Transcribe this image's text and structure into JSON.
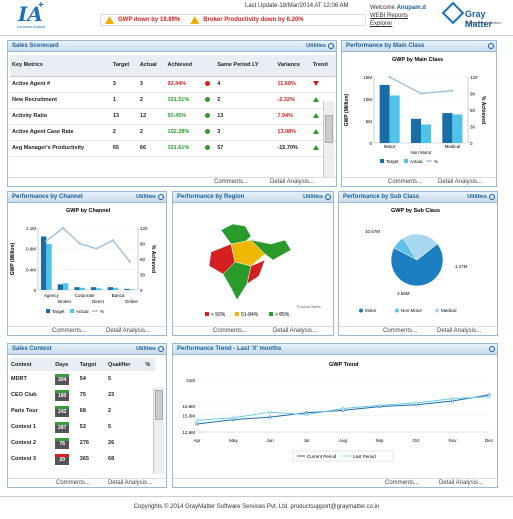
{
  "header": {
    "logo_sub": "Insurance Analytix",
    "last_update": "Last Update-18/Mar/2014 AT 12:06 AM",
    "ticker_1": "GWP down by 19.89%",
    "ticker_2": "Broker Productivity down by 6.20%",
    "welcome": "Welcome",
    "user": "Anupam.d",
    "link1": "WEBI Reports",
    "link2": "Explorer",
    "brand": "Gray Matter",
    "brand_tag": "Engineering Intuition"
  },
  "common": {
    "utilities": "Utilities",
    "comments": "Comments...",
    "detail": "Detail Analysis..."
  },
  "scorecard": {
    "title": "Sales Scorecard",
    "columns": [
      "Key Metrics",
      "Target",
      "Actual",
      "Achieved",
      "",
      "Same Period LY",
      "Variance",
      "Trend"
    ],
    "rows": [
      {
        "metric": "Active Agent #",
        "target": "3",
        "actual": "3",
        "achieved": "92.44%",
        "ach_color": "#d42020",
        "dot": "#d42020",
        "ly": "4",
        "variance": "11.60%",
        "var_color": "#d42020",
        "trend": "down"
      },
      {
        "metric": "New Recruitment",
        "target": "1",
        "actual": "2",
        "achieved": "101.51%",
        "ach_color": "#2a9a2a",
        "dot": "#2a9a2a",
        "ly": "2",
        "variance": "-2.32%",
        "var_color": "#d42020",
        "trend": "up"
      },
      {
        "metric": "Activity Ratio",
        "target": "13",
        "actual": "12",
        "achieved": "92.45%",
        "ach_color": "#2a9a2a",
        "dot": "#2a9a2a",
        "ly": "13",
        "variance": "7.94%",
        "var_color": "#d42020",
        "trend": "up"
      },
      {
        "metric": "Active Agent Case Rate",
        "target": "2",
        "actual": "2",
        "achieved": "102.28%",
        "ach_color": "#2a9a2a",
        "dot": "#2a9a2a",
        "ly": "3",
        "variance": "13.08%",
        "var_color": "#d42020",
        "trend": "up"
      },
      {
        "metric": "Avg Manager's Productivity",
        "target": "65",
        "actual": "66",
        "achieved": "101.61%",
        "ach_color": "#2a9a2a",
        "dot": "#2a9a2a",
        "ly": "57",
        "variance": "-15.70%",
        "var_color": "#222",
        "trend": "up"
      }
    ]
  },
  "main_class": {
    "title": "Performance by Main Class",
    "chart_data": {
      "type": "bar",
      "title": "GWP by Main Class",
      "categories": [
        "Motor",
        "Non Motor",
        "Medical"
      ],
      "series": [
        {
          "name": "Target",
          "values": [
            13.2,
            5.5,
            6.8
          ]
        },
        {
          "name": "Actual",
          "values": [
            10.8,
            4.2,
            6.5
          ]
        }
      ],
      "line": {
        "name": "%",
        "values": [
          120,
          90,
          95
        ]
      },
      "ylabel": "GWP (Million)",
      "y2label": "% Achieved",
      "y_ticks": [
        "0",
        "5M",
        "10M",
        "15M"
      ],
      "y2_ticks": [
        "0",
        "30",
        "60",
        "90",
        "120"
      ]
    }
  },
  "channel": {
    "title": "Performance by Channel",
    "chart_data": {
      "type": "bar",
      "title": "GWP by Channel",
      "categories": [
        "Agency",
        "Broker",
        "Corporate",
        "Direct",
        "Banca",
        "Online"
      ],
      "tick_labels": [
        "Agency",
        "Corporate",
        "Banca"
      ],
      "tick_labels_2": [
        "Broker",
        "Direct",
        "Online"
      ],
      "series": [
        {
          "name": "Target",
          "values": [
            0.95,
            0.1,
            0.05,
            0.05,
            0.05,
            0.02
          ]
        },
        {
          "name": "Actual",
          "values": [
            0.82,
            0.12,
            0.04,
            0.03,
            0.04,
            0.01
          ]
        }
      ],
      "line": {
        "name": "%",
        "values": [
          95,
          120,
          90,
          80,
          96,
          55
        ]
      },
      "ylabel": "GWP (Million)",
      "y2label": "% Achieved",
      "y_ticks": [
        "0",
        "0.4M",
        "0.8M",
        "1.1M"
      ],
      "y2_ticks": [
        "0",
        "30",
        "60",
        "90",
        "120"
      ]
    }
  },
  "region": {
    "title": "Performance by Region",
    "legend": [
      "< 50%",
      "51-84%",
      "> 85%"
    ],
    "credit": "FusionCharts"
  },
  "subclass": {
    "title": "Performance by Sub Class",
    "chart_data": {
      "type": "pie",
      "title": "GWP by Sub Class",
      "slices": [
        {
          "label": "Motor",
          "value": 10.67,
          "text": "10.67M"
        },
        {
          "label": "Non Motor",
          "value": 1.27,
          "text": "1.27M"
        },
        {
          "label": "Medical",
          "value": 3.66,
          "text": "3.66M"
        }
      ]
    }
  },
  "contest": {
    "title": "Sales Contest",
    "columns": [
      "Contest",
      "Days",
      "Target",
      "Qualifier",
      "%"
    ],
    "rows": [
      {
        "name": "MDRT",
        "days": "304",
        "target": "54",
        "qual": "5",
        "red": false
      },
      {
        "name": "CEO Club",
        "days": "180",
        "target": "75",
        "qual": "23",
        "red": false
      },
      {
        "name": "Paris Tour",
        "days": "242",
        "target": "68",
        "qual": "2",
        "red": false
      },
      {
        "name": "Contest 1",
        "days": "287",
        "target": "53",
        "qual": "5",
        "red": false
      },
      {
        "name": "Contest 2",
        "days": "76",
        "target": "276",
        "qual": "26",
        "red": false
      },
      {
        "name": "Contest 3",
        "days": "20",
        "target": "365",
        "qual": "68",
        "red": true
      }
    ]
  },
  "trend": {
    "title": "Performance Trend - Last 'X' months",
    "chart_data": {
      "type": "line",
      "title": "GWP Trend",
      "categories": [
        "Apr",
        "May",
        "Jun",
        "Jul",
        "Aug",
        "Sep",
        "Oct",
        "Nov",
        "Dec"
      ],
      "series": [
        {
          "name": "Current Period",
          "values": [
            13.9,
            14.6,
            15.0,
            15.7,
            16.1,
            16.7,
            17.0,
            17.6,
            18.6
          ]
        },
        {
          "name": "Last Period",
          "values": [
            14.5,
            14.9,
            15.8,
            15.4,
            16.4,
            16.9,
            17.3,
            18.0,
            18.3
          ]
        }
      ],
      "y_ticks": [
        "12.6M",
        "15.3M",
        "16.8M",
        "21M"
      ],
      "ylim": [
        12.6,
        21
      ]
    }
  },
  "footer": {
    "text": "Copyrights © 2014 GrayMatter Software Services Pvt. Ltd. productsupport@graymatter.co.in"
  }
}
